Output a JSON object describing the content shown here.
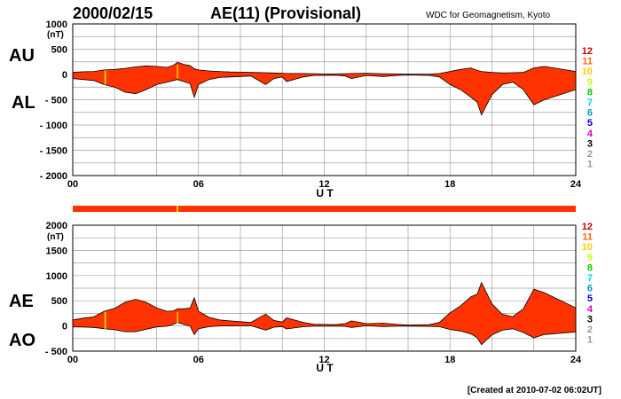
{
  "header": {
    "date": "2000/02/15",
    "title": "AE(11) (Provisional)",
    "source": "WDC for Geomagnetism, Kyoto"
  },
  "footer": {
    "created": "[Created at 2010-07-02 06:02UT]"
  },
  "colors": {
    "fill": "#ff3300",
    "outline": "#000000",
    "grid": "#a0a0a0",
    "station_scale": [
      "#999999",
      "#999999",
      "#000000",
      "#cc00cc",
      "#0000cc",
      "#0099cc",
      "#00ccff",
      "#00cc00",
      "#ccff00",
      "#ffcc00",
      "#ff6600",
      "#cc0000"
    ]
  },
  "station_scale": [
    "12",
    "11",
    "10",
    "9",
    "8",
    "7",
    "6",
    "5",
    "4",
    "3",
    "2",
    "1"
  ],
  "chart_data": [
    {
      "type": "area",
      "panel": "upper",
      "series": [
        {
          "name": "AU",
          "values": [
            40,
            55,
            60,
            90,
            100,
            120,
            150,
            170,
            160,
            140,
            180,
            240,
            200,
            175,
            110,
            90,
            70,
            60,
            50,
            45,
            40,
            35,
            30,
            25,
            20,
            20,
            15,
            10,
            10,
            15,
            20,
            25,
            15,
            10,
            5,
            5,
            20,
            60,
            100,
            130,
            80,
            60,
            40,
            30,
            35,
            40,
            130,
            160,
            60
          ]
        },
        {
          "name": "AL",
          "values": [
            -80,
            -100,
            -120,
            -200,
            -250,
            -350,
            -380,
            -300,
            -200,
            -150,
            -120,
            -100,
            -140,
            -180,
            -450,
            -200,
            -100,
            -60,
            -50,
            -40,
            -30,
            -200,
            -80,
            -50,
            -140,
            -50,
            -20,
            -20,
            -15,
            -30,
            -80,
            -20,
            -40,
            -20,
            -10,
            -20,
            -50,
            -200,
            -300,
            -450,
            -550,
            -800,
            -400,
            -200,
            -150,
            -300,
            -600,
            -500,
            -300
          ]
        }
      ],
      "x": [
        0,
        0.5,
        1,
        1.5,
        2,
        2.5,
        3,
        3.5,
        4,
        4.5,
        4.8,
        5,
        5.3,
        5.6,
        5.8,
        6,
        6.5,
        7,
        7.5,
        8,
        8.5,
        9.2,
        9.6,
        10,
        10.2,
        11,
        11.5,
        12,
        12.5,
        13,
        13.3,
        14,
        14.8,
        15.5,
        16,
        17,
        17.5,
        18,
        18.5,
        19,
        19.3,
        19.5,
        20,
        20.5,
        21,
        21.5,
        22,
        22.5,
        24
      ],
      "ylabel": "(nT)",
      "xlabel": "U T",
      "x_ticks": [
        "00",
        "06",
        "12",
        "18",
        "24"
      ],
      "y_ticks": [
        "1000",
        "500",
        "0",
        "- 500",
        "- 1000",
        "- 1500",
        "- 2000"
      ],
      "xlim": [
        0,
        24
      ],
      "ylim": [
        -2000,
        1000
      ],
      "grid": true,
      "labels": [
        "AU",
        "AL"
      ]
    },
    {
      "type": "area",
      "panel": "lower",
      "series": [
        {
          "name": "AE",
          "values": [
            120,
            155,
            180,
            290,
            350,
            470,
            530,
            470,
            360,
            290,
            300,
            340,
            340,
            355,
            560,
            290,
            170,
            120,
            100,
            85,
            70,
            235,
            110,
            75,
            160,
            70,
            35,
            30,
            25,
            45,
            100,
            45,
            55,
            30,
            15,
            25,
            70,
            260,
            400,
            580,
            630,
            860,
            440,
            230,
            185,
            340,
            730,
            660,
            360
          ]
        },
        {
          "name": "AO",
          "values": [
            -20,
            -22,
            -30,
            -55,
            -75,
            -115,
            -115,
            -65,
            -20,
            -5,
            30,
            70,
            30,
            -3,
            -170,
            -55,
            -15,
            0,
            0,
            3,
            5,
            -82,
            -25,
            -12,
            -60,
            -15,
            -3,
            -5,
            -3,
            -8,
            -30,
            3,
            -12,
            -5,
            -3,
            -8,
            -15,
            -70,
            -100,
            -160,
            -235,
            -370,
            -180,
            -85,
            -57,
            -130,
            -235,
            -170,
            -120
          ]
        }
      ],
      "x": [
        0,
        0.5,
        1,
        1.5,
        2,
        2.5,
        3,
        3.5,
        4,
        4.5,
        4.8,
        5,
        5.3,
        5.6,
        5.8,
        6,
        6.5,
        7,
        7.5,
        8,
        8.5,
        9.2,
        9.6,
        10,
        10.2,
        11,
        11.5,
        12,
        12.5,
        13,
        13.3,
        14,
        14.8,
        15.5,
        16,
        17,
        17.5,
        18,
        18.5,
        19,
        19.3,
        19.5,
        20,
        20.5,
        21,
        21.5,
        22,
        22.5,
        24
      ],
      "ylabel": "(nT)",
      "xlabel": "U T",
      "x_ticks": [
        "00",
        "06",
        "12",
        "18",
        "24"
      ],
      "y_ticks": [
        "2000",
        "1500",
        "1000",
        "500",
        "0",
        "- 500"
      ],
      "xlim": [
        0,
        24
      ],
      "ylim": [
        -500,
        2000
      ],
      "grid": true,
      "labels": [
        "AE",
        "AO"
      ]
    }
  ]
}
